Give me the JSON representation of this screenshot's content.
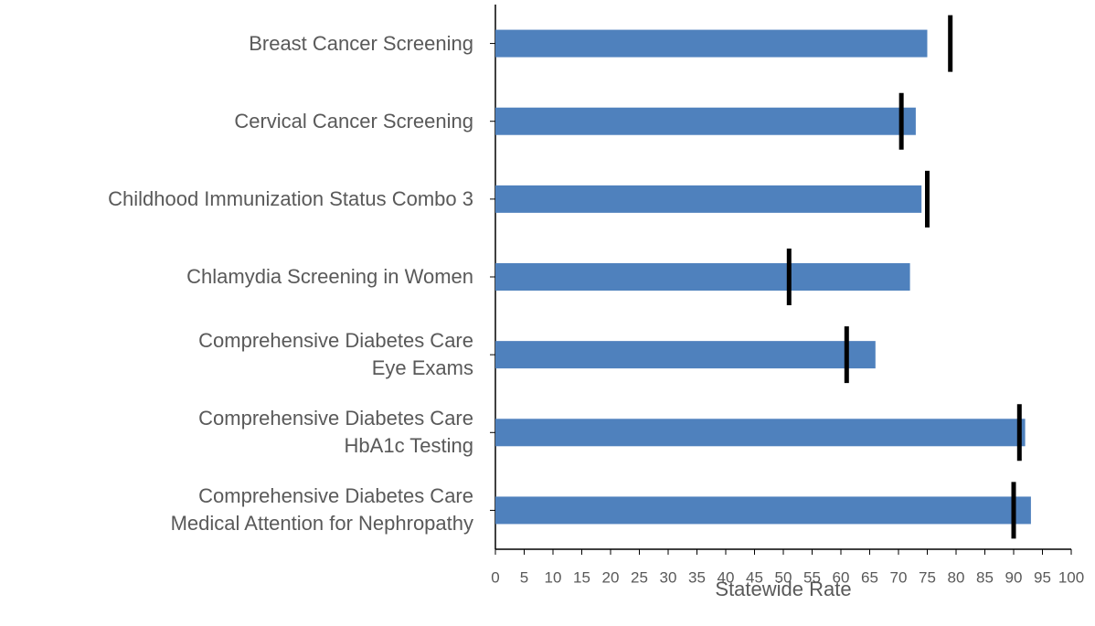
{
  "chart_data": {
    "type": "bar",
    "orientation": "horizontal",
    "categories": [
      "Breast Cancer Screening",
      "Cervical Cancer Screening",
      "Childhood Immunization Status Combo 3",
      "Chlamydia Screening in Women",
      "Comprehensive Diabetes Care\nEye Exams",
      "Comprehensive Diabetes Care\nHbA1c Testing",
      "Comprehensive Diabetes Care\nMedical Attention for Nephropathy"
    ],
    "series": [
      {
        "color": "#4f81bd",
        "values": [
          75,
          73,
          74,
          72,
          66,
          92,
          93
        ]
      }
    ],
    "markers": {
      "color": "#000000",
      "values": [
        79,
        70.5,
        75,
        51,
        61,
        91,
        90
      ]
    },
    "xlabel": "Statewide Rate",
    "xlim": [
      0,
      100
    ],
    "xticks": [
      0,
      5,
      10,
      15,
      20,
      25,
      30,
      35,
      40,
      45,
      50,
      55,
      60,
      65,
      70,
      75,
      80,
      85,
      90,
      95,
      100
    ],
    "grid": false
  }
}
